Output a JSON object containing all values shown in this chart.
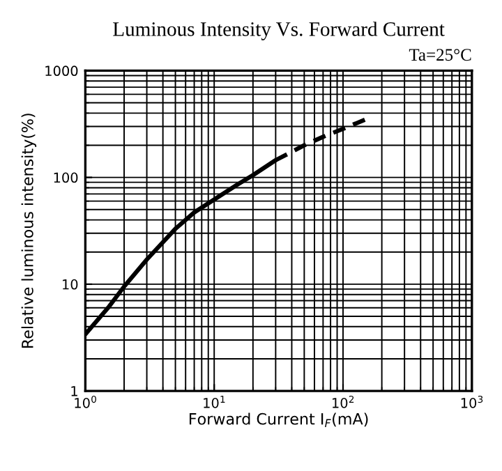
{
  "chart_data": {
    "type": "line",
    "title": "Luminous Intensity Vs. Forward Current",
    "xlabel": "Forward Current I$_{F}$(mA)",
    "ylabel": "Relative luminous intensity(%)",
    "annotations": [
      "Ta=25°C"
    ],
    "log": "xy",
    "grid": true,
    "xlim": [
      1,
      1000
    ],
    "xticks": [
      {
        "value": 1,
        "label": "10$^{0}$"
      },
      {
        "value": 10,
        "label": "10$^{1}$"
      },
      {
        "value": 100,
        "label": "10$^{2}$"
      },
      {
        "value": 1000,
        "label": "10$^{3}$"
      }
    ],
    "ylim": [
      1,
      1000
    ],
    "yticks": [
      1,
      10,
      100,
      1000
    ],
    "series": [
      {
        "color": "#000000",
        "line_style": "solid",
        "x": [
          1,
          1.5,
          2,
          3,
          5,
          7,
          10,
          15,
          20,
          30
        ],
        "values": [
          3.4,
          6,
          9.5,
          17,
          33,
          47,
          62,
          85,
          105,
          145
        ]
      },
      {
        "color": "#000000",
        "line_style": "dashed",
        "x": [
          30,
          50,
          70,
          100,
          150
        ],
        "values": [
          145,
          200,
          240,
          285,
          350
        ]
      }
    ]
  }
}
